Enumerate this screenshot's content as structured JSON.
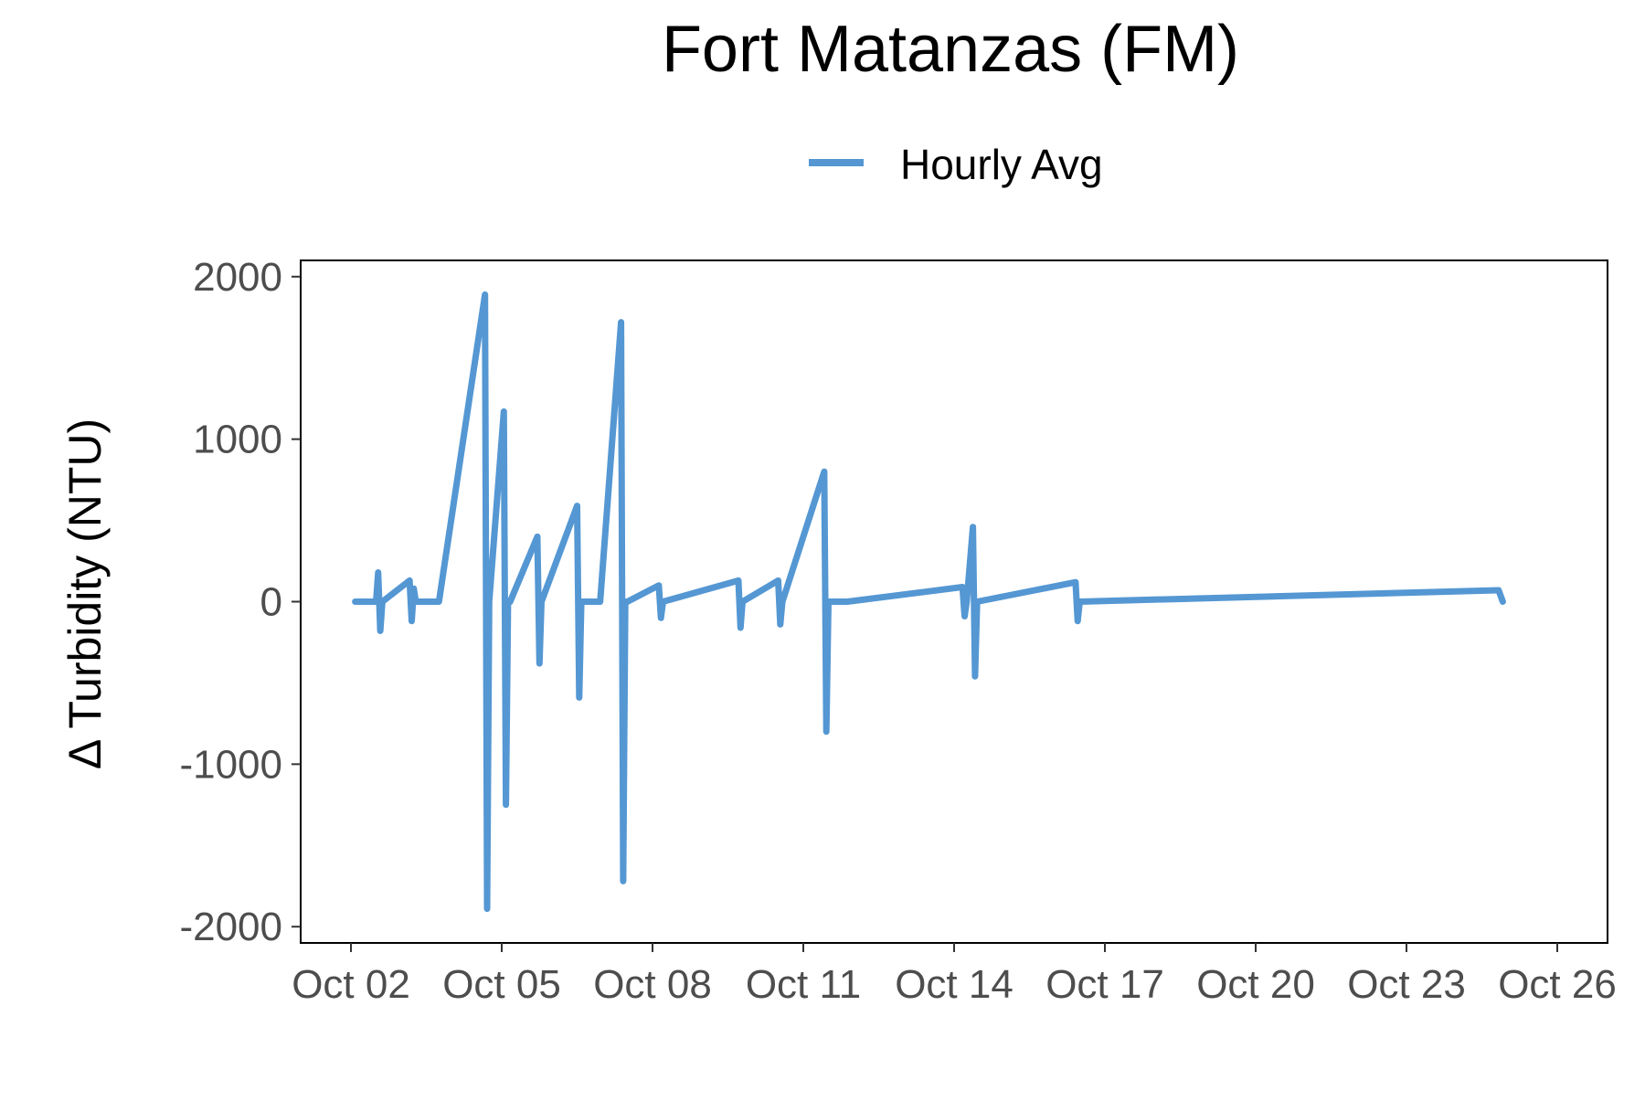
{
  "chart_data": {
    "type": "line",
    "title": "Fort Matanzas (FM)",
    "xlabel": "",
    "ylabel": "Δ Turbidity (NTU)",
    "legend": {
      "placement": "top",
      "entries": [
        "Hourly Avg"
      ]
    },
    "grid": false,
    "series_color": "#5497D3",
    "xlim": [
      "2024-10-01T00:00",
      "2024-10-27T00:00"
    ],
    "ylim": [
      -2100,
      2100
    ],
    "x_ticks": [
      "2024-10-02",
      "2024-10-05",
      "2024-10-08",
      "2024-10-11",
      "2024-10-14",
      "2024-10-17",
      "2024-10-20",
      "2024-10-23",
      "2024-10-26"
    ],
    "x_tick_labels": [
      "Oct 02",
      "Oct 05",
      "Oct 08",
      "Oct 11",
      "Oct 14",
      "Oct 17",
      "Oct 20",
      "Oct 23",
      "Oct 26"
    ],
    "y_ticks": [
      -2000,
      -1000,
      0,
      1000,
      2000
    ],
    "y_tick_labels": [
      "-2000",
      "-1000",
      "0",
      "1000",
      "2000"
    ],
    "series": [
      {
        "name": "Hourly Avg",
        "x": [
          "2024-10-02T02:00",
          "2024-10-02T12:00",
          "2024-10-02T13:00",
          "2024-10-02T14:00",
          "2024-10-02T15:00",
          "2024-10-03T04:00",
          "2024-10-03T05:00",
          "2024-10-03T06:00",
          "2024-10-03T07:00",
          "2024-10-03T16:00",
          "2024-10-03T17:00",
          "2024-10-03T18:00",
          "2024-10-04T16:00",
          "2024-10-04T17:00",
          "2024-10-04T18:00",
          "2024-10-05T01:00",
          "2024-10-05T02:00",
          "2024-10-05T03:00",
          "2024-10-05T04:00",
          "2024-10-05T17:00",
          "2024-10-05T18:00",
          "2024-10-05T19:00",
          "2024-10-06T12:00",
          "2024-10-06T13:00",
          "2024-10-06T14:00",
          "2024-10-06T23:00",
          "2024-10-07T09:00",
          "2024-10-07T10:00",
          "2024-10-07T11:00",
          "2024-10-07T12:00",
          "2024-10-08T03:00",
          "2024-10-08T04:00",
          "2024-10-08T05:00",
          "2024-10-09T17:00",
          "2024-10-09T18:00",
          "2024-10-09T19:00",
          "2024-10-10T12:00",
          "2024-10-10T13:00",
          "2024-10-10T14:00",
          "2024-10-11T10:00",
          "2024-10-11T11:00",
          "2024-10-11T12:00",
          "2024-10-11T19:00",
          "2024-10-11T20:00",
          "2024-10-11T21:00",
          "2024-10-14T04:00",
          "2024-10-14T05:00",
          "2024-10-14T06:00",
          "2024-10-14T09:00",
          "2024-10-14T10:00",
          "2024-10-14T11:00",
          "2024-10-16T10:00",
          "2024-10-16T11:00",
          "2024-10-16T12:00",
          "2024-10-24T20:00",
          "2024-10-24T22:00"
        ],
        "y": [
          0,
          0,
          180,
          -180,
          0,
          130,
          -120,
          80,
          0,
          0,
          0,
          0,
          1890,
          -1890,
          0,
          1170,
          -1250,
          0,
          0,
          400,
          -380,
          0,
          590,
          -590,
          0,
          0,
          1720,
          -1720,
          0,
          0,
          100,
          -100,
          0,
          130,
          -160,
          0,
          130,
          -140,
          0,
          800,
          -800,
          0,
          0,
          0,
          0,
          90,
          -90,
          0,
          460,
          -460,
          0,
          120,
          -120,
          0,
          70,
          0
        ]
      }
    ]
  }
}
